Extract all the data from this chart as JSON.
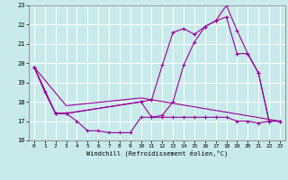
{
  "background_color": "#c8eaea",
  "line_color": "#990099",
  "grid_color": "#ffffff",
  "xlabel": "Windchill (Refroidissement éolien,°C)",
  "xlim": [
    -0.5,
    23.5
  ],
  "ylim": [
    16,
    23
  ],
  "yticks": [
    16,
    17,
    18,
    19,
    20,
    21,
    22,
    23
  ],
  "xticks": [
    0,
    1,
    2,
    3,
    4,
    5,
    6,
    7,
    8,
    9,
    10,
    11,
    12,
    13,
    14,
    15,
    16,
    17,
    18,
    19,
    20,
    21,
    22,
    23
  ],
  "lines": [
    {
      "x": [
        0,
        1,
        2,
        3,
        4,
        5,
        6,
        7,
        8,
        9,
        10,
        11,
        12,
        13,
        14,
        15,
        16,
        17,
        18,
        19,
        20,
        21,
        22,
        23
      ],
      "y": [
        19.8,
        18.5,
        17.4,
        17.4,
        17.0,
        16.5,
        16.5,
        16.4,
        16.4,
        16.4,
        17.2,
        17.2,
        17.2,
        17.2,
        17.2,
        17.2,
        17.2,
        17.2,
        17.2,
        17.0,
        17.0,
        16.9,
        17.0,
        17.0
      ],
      "marker": "+"
    },
    {
      "x": [
        0,
        2,
        3,
        10,
        11,
        12,
        13,
        14,
        15,
        16,
        17,
        18,
        19,
        20,
        21,
        22,
        23
      ],
      "y": [
        19.8,
        17.4,
        17.4,
        18.0,
        17.2,
        17.3,
        18.0,
        19.9,
        21.1,
        21.9,
        22.2,
        22.4,
        20.5,
        20.5,
        19.5,
        17.0,
        17.0
      ],
      "marker": "+"
    },
    {
      "x": [
        0,
        2,
        3,
        10,
        11,
        12,
        13,
        14,
        15,
        16,
        17,
        18,
        19,
        20,
        21,
        22,
        23
      ],
      "y": [
        19.8,
        17.4,
        17.4,
        18.0,
        18.1,
        19.9,
        21.6,
        21.8,
        21.5,
        21.9,
        22.2,
        23.0,
        21.7,
        20.5,
        19.5,
        17.0,
        17.0
      ],
      "marker": "+"
    },
    {
      "x": [
        0,
        3,
        10,
        23
      ],
      "y": [
        19.8,
        17.8,
        18.2,
        17.0
      ],
      "marker": null
    }
  ]
}
